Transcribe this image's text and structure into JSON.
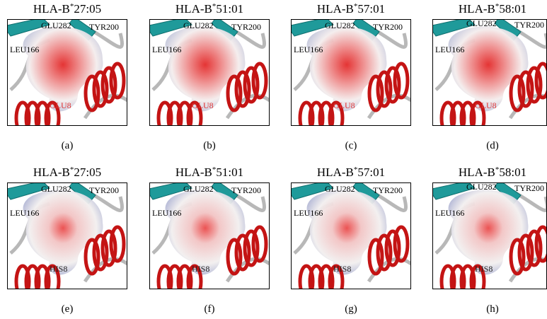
{
  "panels": [
    {
      "allele_prefix": "HLA-B",
      "star": "*",
      "allele": "27:05",
      "residues": [
        "GLU282",
        "TYR200",
        "LEU166",
        "GLU8"
      ],
      "site_label_color": "#e03434",
      "caption": "(a)"
    },
    {
      "allele_prefix": "HLA-B",
      "star": "*",
      "allele": "51:01",
      "residues": [
        "GLU282",
        "TYR200",
        "LEU166",
        "GLU8"
      ],
      "site_label_color": "#e03434",
      "caption": "(b)"
    },
    {
      "allele_prefix": "HLA-B",
      "star": "*",
      "allele": "57:01",
      "residues": [
        "GLU282",
        "TYR200",
        "LEU166",
        "GLU8"
      ],
      "site_label_color": "#e03434",
      "caption": "(c)"
    },
    {
      "allele_prefix": "HLA-B",
      "star": "*",
      "allele": "58:01",
      "residues": [
        "GLU282",
        "TYR200",
        "LEU166",
        "GLU8"
      ],
      "site_label_color": "#e03434",
      "caption": "(d)"
    },
    {
      "allele_prefix": "HLA-B",
      "star": "*",
      "allele": "27:05",
      "residues": [
        "GLU282",
        "TYR200",
        "LEU166",
        "HIS8"
      ],
      "site_label_color": "#222222",
      "caption": "(e)"
    },
    {
      "allele_prefix": "HLA-B",
      "star": "*",
      "allele": "51:01",
      "residues": [
        "GLU282",
        "TYR200",
        "LEU166",
        "HIS8"
      ],
      "site_label_color": "#222222",
      "caption": "(f)"
    },
    {
      "allele_prefix": "HLA-B",
      "star": "*",
      "allele": "57:01",
      "residues": [
        "GLU282",
        "TYR200",
        "LEU166",
        "HIS8"
      ],
      "site_label_color": "#222222",
      "caption": "(g)"
    },
    {
      "allele_prefix": "HLA-B",
      "star": "*",
      "allele": "58:01",
      "residues": [
        "GLU282",
        "TYR200",
        "LEU166",
        "HIS8"
      ],
      "site_label_color": "#222222",
      "caption": "(h)"
    }
  ]
}
